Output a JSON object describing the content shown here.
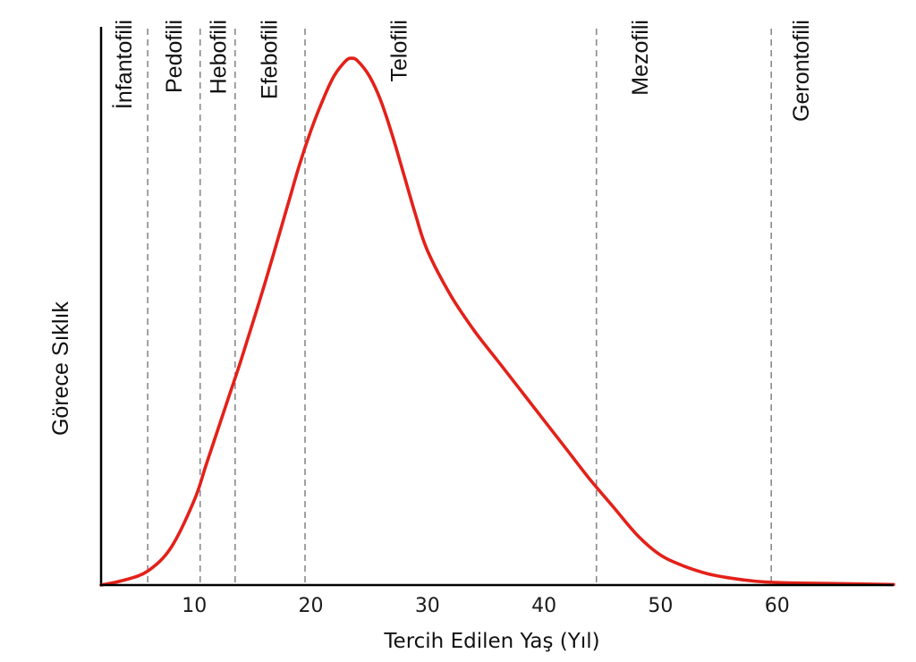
{
  "chart_data": {
    "type": "line",
    "title": "",
    "xlabel": "Tercih Edilen Yaş (Yıl)",
    "ylabel": "Görece Sıklık",
    "xlim": [
      2,
      70
    ],
    "ylim": [
      0,
      1.1
    ],
    "x_ticks": [
      10,
      20,
      30,
      40,
      50,
      60
    ],
    "grid": false,
    "color": "#e32119",
    "boundaries": [
      6,
      10.5,
      13.5,
      19.5,
      44.5,
      59.5
    ],
    "regions": [
      {
        "label": "İnfantofili",
        "x": 3.9
      },
      {
        "label": "Pedofili",
        "x": 8.2
      },
      {
        "label": "Hebofili",
        "x": 12.0
      },
      {
        "label": "Efebofili",
        "x": 16.4
      },
      {
        "label": "Telofili",
        "x": 27.5
      },
      {
        "label": "Mezofili",
        "x": 48.2
      },
      {
        "label": "Gerontofili",
        "x": 62.0
      }
    ],
    "series": [
      {
        "x": [
          2,
          4,
          6,
          8,
          10,
          11,
          12,
          13,
          14,
          16,
          18,
          19,
          20,
          21,
          22,
          23,
          23.5,
          24,
          25,
          26,
          27,
          28,
          29,
          30,
          32,
          34,
          36,
          38,
          40,
          42,
          44,
          46,
          48,
          50,
          52,
          54,
          56,
          58,
          60,
          62,
          65,
          70
        ],
        "y": [
          0.0,
          0.01,
          0.028,
          0.075,
          0.17,
          0.24,
          0.31,
          0.38,
          0.45,
          0.6,
          0.76,
          0.84,
          0.91,
          0.97,
          1.02,
          1.05,
          1.055,
          1.05,
          1.02,
          0.97,
          0.9,
          0.82,
          0.74,
          0.67,
          0.58,
          0.51,
          0.45,
          0.39,
          0.33,
          0.27,
          0.21,
          0.155,
          0.1,
          0.06,
          0.038,
          0.023,
          0.014,
          0.008,
          0.005,
          0.004,
          0.003,
          0.001
        ]
      }
    ]
  }
}
